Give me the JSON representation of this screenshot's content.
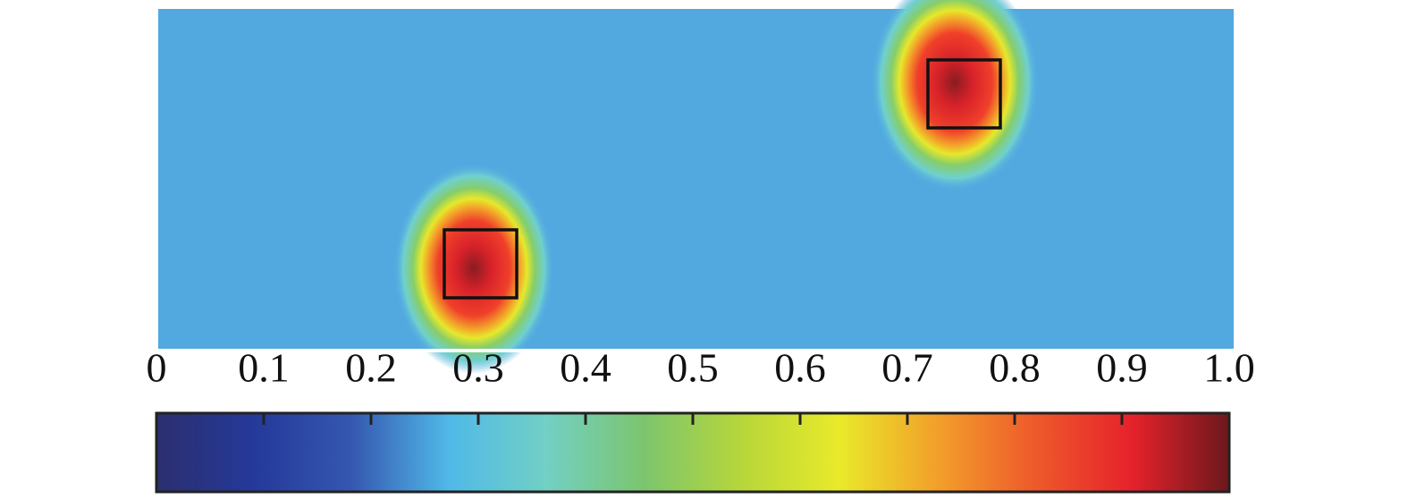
{
  "chart_data": {
    "type": "heatmap",
    "clim": [
      0,
      1
    ],
    "colormap": [
      "#2b2f6e",
      "#25399a",
      "#3557b0",
      "#50b9e8",
      "#72d0c4",
      "#7cc56e",
      "#b7d63a",
      "#e9ea2a",
      "#f2a02a",
      "#ee5a2b",
      "#e6222b",
      "#6b181c"
    ],
    "cticks": [
      0,
      0.1,
      0.2,
      0.3,
      0.4,
      0.5,
      0.6,
      0.7,
      0.8,
      0.9,
      {
        "value": 1,
        "label": "1.0"
      }
    ]
  }
}
